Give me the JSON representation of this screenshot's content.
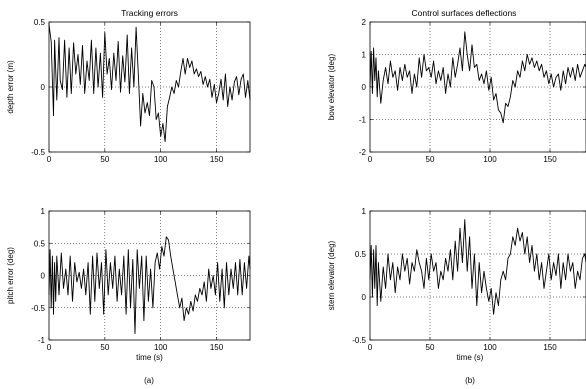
{
  "figure": {
    "captions": [
      "(a)",
      "(b)"
    ]
  },
  "chart_data": [
    {
      "type": "line",
      "title": "Tracking errors",
      "xlabel": "",
      "ylabel": "depth error (m)",
      "xlim": [
        0,
        180
      ],
      "ylim": [
        -0.5,
        0.5
      ],
      "xticks": [
        "0",
        "50",
        "100",
        "150"
      ],
      "yticks": [
        "-0.5",
        "0",
        "0.5"
      ],
      "grid": true,
      "series": [
        {
          "x": [
            0,
            2,
            4,
            5,
            7,
            9,
            10,
            12,
            14,
            16,
            18,
            20,
            22,
            24,
            26,
            28,
            30,
            32,
            34,
            36,
            38,
            40,
            42,
            44,
            46,
            48,
            50,
            52,
            54,
            56,
            58,
            60,
            62,
            64,
            66,
            68,
            70,
            72,
            74,
            76,
            78,
            80,
            82,
            84,
            86,
            88,
            90,
            92,
            94,
            96,
            98,
            100,
            102,
            104,
            106,
            108,
            110,
            112,
            114,
            116,
            118,
            120,
            122,
            124,
            126,
            128,
            130,
            132,
            134,
            136,
            138,
            140,
            142,
            144,
            146,
            148,
            150,
            152,
            154,
            156,
            158,
            160,
            162,
            164,
            166,
            168,
            170,
            172,
            174,
            176,
            178,
            180
          ],
          "y": [
            0.48,
            0.35,
            -0.22,
            0.36,
            -0.1,
            0.38,
            0.05,
            -0.02,
            0.36,
            -0.08,
            0.3,
            -0.05,
            0.34,
            0.1,
            0.25,
            0.02,
            0.32,
            -0.05,
            0.2,
            0.05,
            0.36,
            -0.05,
            0.3,
            0.0,
            0.26,
            -0.08,
            0.42,
            0.1,
            0.22,
            -0.02,
            0.26,
            0.05,
            0.35,
            -0.04,
            0.24,
            0.04,
            0.4,
            -0.05,
            0.3,
            0.0,
            0.46,
            0.1,
            -0.3,
            -0.05,
            -0.2,
            -0.12,
            -0.22,
            0.05,
            0.0,
            -0.25,
            -0.2,
            -0.38,
            -0.28,
            -0.42,
            -0.15,
            -0.08,
            0.0,
            -0.05,
            0.05,
            0.0,
            0.12,
            0.22,
            0.1,
            0.22,
            0.15,
            0.2,
            0.1,
            0.14,
            0.08,
            0.12,
            0.02,
            0.08,
            0.0,
            0.06,
            -0.08,
            0.02,
            -0.12,
            -0.05,
            0.06,
            -0.1,
            0.1,
            -0.15,
            0.0,
            -0.1,
            0.04,
            0.08,
            -0.06,
            0.06,
            0.1,
            -0.08,
            0.05,
            -0.1
          ]
        }
      ]
    },
    {
      "type": "line",
      "title": "Control surfaces deflections",
      "xlabel": "",
      "ylabel": "bow elevator (deg)",
      "xlim": [
        0,
        180
      ],
      "ylim": [
        -2,
        2
      ],
      "xticks": [
        "0",
        "50",
        "100",
        "150"
      ],
      "yticks": [
        "-2",
        "-1",
        "0",
        "1",
        "2"
      ],
      "grid": true,
      "series": [
        {
          "x": [
            0,
            1,
            2,
            3,
            4,
            5,
            6,
            7,
            9,
            11,
            13,
            15,
            17,
            19,
            21,
            23,
            25,
            27,
            29,
            31,
            33,
            35,
            37,
            39,
            41,
            43,
            45,
            47,
            49,
            51,
            53,
            55,
            57,
            59,
            61,
            63,
            65,
            67,
            69,
            71,
            73,
            75,
            77,
            79,
            81,
            83,
            85,
            87,
            89,
            91,
            93,
            95,
            97,
            99,
            101,
            103,
            105,
            107,
            109,
            111,
            113,
            115,
            117,
            119,
            121,
            123,
            125,
            127,
            129,
            131,
            133,
            135,
            137,
            139,
            141,
            143,
            145,
            147,
            149,
            151,
            153,
            155,
            157,
            159,
            161,
            163,
            165,
            167,
            169,
            171,
            173,
            175,
            177,
            179,
            180
          ],
          "y": [
            0.0,
            1.1,
            -0.2,
            1.2,
            0.2,
            0.9,
            -0.3,
            0.5,
            -0.5,
            0.2,
            0.6,
            0.1,
            0.8,
            0.3,
            0.5,
            -0.1,
            0.6,
            0.2,
            0.7,
            0.3,
            0.5,
            -0.2,
            0.4,
            0.0,
            0.9,
            0.3,
            1.0,
            0.5,
            0.6,
            0.3,
            0.8,
            0.1,
            0.5,
            0.2,
            0.6,
            -0.2,
            0.4,
            0.0,
            0.9,
            0.3,
            0.7,
            1.2,
            0.5,
            1.7,
            1.0,
            0.5,
            1.3,
            0.6,
            0.7,
            0.2,
            0.4,
            0.1,
            0.5,
            -0.1,
            0.3,
            -0.4,
            -0.2,
            -0.7,
            -0.8,
            -1.1,
            -0.5,
            -0.6,
            -0.3,
            0.2,
            0.0,
            0.5,
            0.3,
            0.8,
            0.5,
            1.0,
            0.7,
            0.9,
            0.6,
            0.8,
            0.5,
            0.7,
            0.3,
            0.5,
            0.1,
            0.4,
            0.0,
            0.3,
            0.4,
            -0.1,
            0.5,
            0.1,
            0.6,
            0.3,
            0.6,
            0.2,
            0.7,
            0.3,
            0.5,
            0.7,
            0.6
          ]
        }
      ]
    },
    {
      "type": "line",
      "title": "",
      "xlabel": "time (s)",
      "ylabel": "pitch error (deg)",
      "xlim": [
        0,
        180
      ],
      "ylim": [
        -1,
        1
      ],
      "xticks": [
        "0",
        "50",
        "100",
        "150"
      ],
      "yticks": [
        "-1",
        "-0.5",
        "0",
        "0.5",
        "1"
      ],
      "grid": true,
      "series": [
        {
          "x": [
            0,
            1,
            2,
            3,
            4,
            5,
            6,
            7,
            9,
            11,
            13,
            15,
            17,
            19,
            21,
            23,
            25,
            27,
            29,
            31,
            33,
            35,
            37,
            39,
            41,
            43,
            45,
            47,
            49,
            51,
            53,
            55,
            57,
            59,
            61,
            63,
            65,
            67,
            69,
            71,
            73,
            75,
            77,
            79,
            81,
            83,
            85,
            87,
            89,
            91,
            93,
            95,
            97,
            99,
            101,
            103,
            105,
            107,
            109,
            111,
            113,
            115,
            117,
            119,
            121,
            123,
            125,
            127,
            129,
            131,
            133,
            135,
            137,
            139,
            141,
            143,
            145,
            147,
            149,
            151,
            153,
            155,
            157,
            159,
            161,
            163,
            165,
            167,
            169,
            171,
            173,
            175,
            177,
            179,
            180
          ],
          "y": [
            -0.3,
            0.4,
            -0.5,
            0.3,
            -0.6,
            0.2,
            -0.4,
            0.3,
            -0.3,
            0.35,
            -0.2,
            0.1,
            -0.3,
            0.3,
            -0.4,
            0.2,
            -0.1,
            0.05,
            -0.2,
            0.1,
            -0.3,
            0.2,
            -0.6,
            0.3,
            -0.4,
            0.35,
            -0.2,
            0.2,
            -0.6,
            0.4,
            -0.3,
            0.2,
            -0.2,
            0.3,
            -0.4,
            0.1,
            -0.3,
            0.3,
            -0.6,
            0.4,
            -0.5,
            0.25,
            -0.9,
            0.4,
            -0.2,
            0.3,
            -0.7,
            0.3,
            -0.4,
            0.1,
            -0.5,
            0.2,
            0.35,
            0.1,
            0.45,
            0.3,
            0.6,
            0.55,
            0.3,
            0.1,
            -0.1,
            -0.3,
            -0.5,
            -0.35,
            -0.7,
            -0.5,
            -0.6,
            -0.4,
            -0.55,
            -0.3,
            -0.4,
            -0.2,
            -0.3,
            -0.1,
            -0.4,
            0.1,
            -0.2,
            0.0,
            -0.3,
            0.2,
            -0.4,
            0.1,
            -0.5,
            0.2,
            -0.3,
            0.1,
            -0.2,
            0.2,
            -0.3,
            0.25,
            -0.3,
            0.2,
            -0.2,
            0.3,
            0.1
          ]
        }
      ]
    },
    {
      "type": "line",
      "title": "",
      "xlabel": "time (s)",
      "ylabel": "stern elevator (deg)",
      "xlim": [
        0,
        180
      ],
      "ylim": [
        -0.5,
        1
      ],
      "xticks": [
        "0",
        "50",
        "100",
        "150"
      ],
      "yticks": [
        "-0.5",
        "0",
        "0.5",
        "1"
      ],
      "grid": true,
      "series": [
        {
          "x": [
            0,
            1,
            2,
            3,
            4,
            5,
            6,
            7,
            9,
            11,
            13,
            15,
            17,
            19,
            21,
            23,
            25,
            27,
            29,
            31,
            33,
            35,
            37,
            39,
            41,
            43,
            45,
            47,
            49,
            51,
            53,
            55,
            57,
            59,
            61,
            63,
            65,
            67,
            69,
            71,
            73,
            75,
            77,
            79,
            81,
            83,
            85,
            87,
            89,
            91,
            93,
            95,
            97,
            99,
            101,
            103,
            105,
            107,
            109,
            111,
            113,
            115,
            117,
            119,
            121,
            123,
            125,
            127,
            129,
            131,
            133,
            135,
            137,
            139,
            141,
            143,
            145,
            147,
            149,
            151,
            153,
            155,
            157,
            159,
            161,
            163,
            165,
            167,
            169,
            171,
            173,
            175,
            177,
            179,
            180
          ],
          "y": [
            0.2,
            0.6,
            0.0,
            0.55,
            0.1,
            0.6,
            -0.1,
            0.4,
            -0.05,
            0.35,
            0.1,
            0.5,
            0.2,
            0.4,
            0.05,
            0.35,
            0.2,
            0.5,
            0.3,
            0.45,
            0.15,
            0.4,
            0.3,
            0.55,
            0.4,
            0.3,
            0.1,
            0.45,
            0.2,
            0.5,
            0.3,
            0.4,
            0.1,
            0.3,
            0.2,
            0.45,
            0.3,
            0.55,
            0.2,
            0.65,
            0.3,
            0.8,
            0.4,
            0.9,
            0.3,
            0.7,
            0.1,
            0.5,
            -0.1,
            0.4,
            0.05,
            0.3,
            0.1,
            -0.05,
            0.1,
            -0.2,
            0.05,
            -0.1,
            0.2,
            0.3,
            0.2,
            0.45,
            0.5,
            0.7,
            0.6,
            0.8,
            0.65,
            0.75,
            0.5,
            0.7,
            0.4,
            0.6,
            0.3,
            0.5,
            0.2,
            0.4,
            0.1,
            0.3,
            0.5,
            0.2,
            0.4,
            0.25,
            0.5,
            0.1,
            0.4,
            0.2,
            0.5,
            0.3,
            0.4,
            0.1,
            0.3,
            0.2,
            0.45,
            0.5,
            0.4
          ]
        }
      ]
    }
  ]
}
